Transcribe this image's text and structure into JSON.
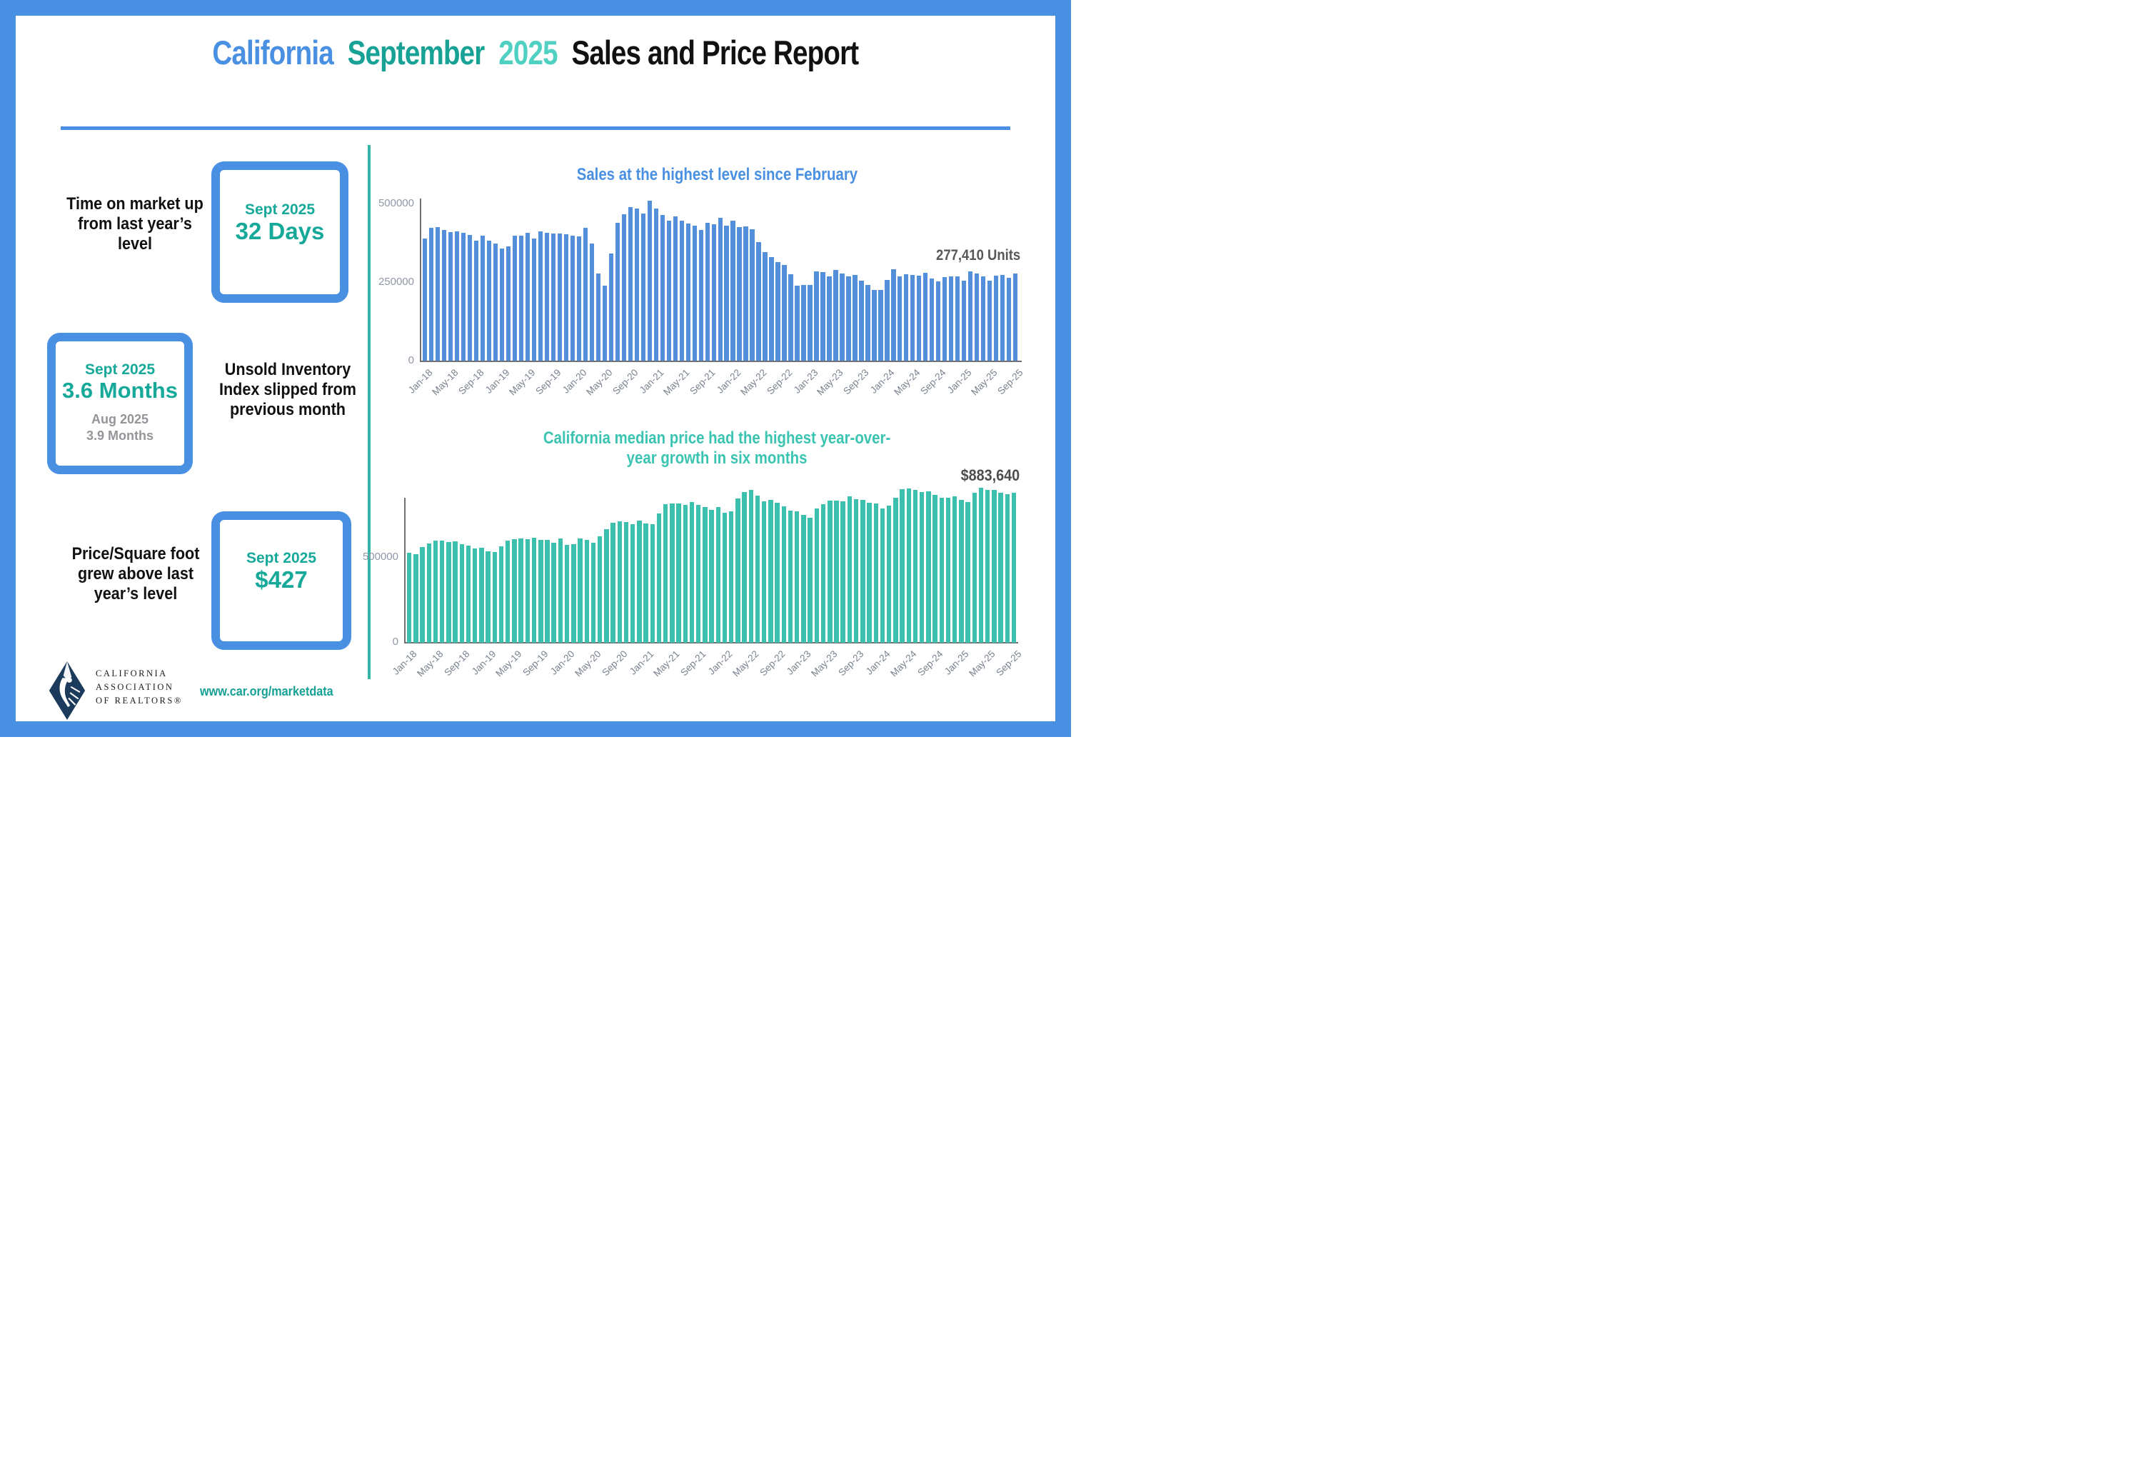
{
  "title": {
    "part1": "California",
    "part2": "September",
    "part3": "2025",
    "part4": "Sales and Price Report"
  },
  "stats": [
    {
      "label": "Time on market up from last year’s level",
      "period": "Sept 2025",
      "value": "32 Days"
    },
    {
      "period": "Sept 2025",
      "value": "3.6 Months",
      "prev_period": "Aug 2025",
      "prev_value": "3.9 Months",
      "label": "Unsold Inventory Index slipped from previous month"
    },
    {
      "label": "Price/Square foot grew above last year’s level",
      "period": "Sept 2025",
      "value": "$427"
    }
  ],
  "footer": {
    "org_line1": "CALIFORNIA",
    "org_line2": "ASSOCIATION",
    "org_line3": "OF REALTORS®",
    "url": "www.car.org/marketdata"
  },
  "colors": {
    "frame_blue": "#4a90e2",
    "sales_bar": "#548fdc",
    "price_bar": "#3bc0ae",
    "divider_teal": "#36b5a6",
    "annotation_gray": "#57585a",
    "axis_gray": "#6f7073",
    "tick_gray": "#78828f"
  },
  "chart_data": [
    {
      "type": "bar",
      "title": "Sales at the highest level since February",
      "annotation": "277,410 Units",
      "ylabel": "",
      "xlabel": "",
      "ylim": [
        0,
        550000
      ],
      "ytick_labels": [
        "500000",
        "250000",
        "0"
      ],
      "yticks": [
        500000,
        250000,
        0
      ],
      "bar_color": "#548fdc",
      "tick_every": 4,
      "tick_labels": [
        "Jan-18",
        "May-18",
        "Sep-18",
        "Jan-19",
        "May-19",
        "Sep-19",
        "Jan-20",
        "May-20",
        "Sep-20",
        "Jan-21",
        "May-21",
        "Sep-21",
        "Jan-22",
        "May-22",
        "Sep-22",
        "Jan-23",
        "May-23",
        "Sep-23",
        "Jan-24",
        "May-24",
        "Sep-24",
        "Jan-25",
        "May-25",
        "Sep-25"
      ],
      "values": [
        388800,
        422910,
        423990,
        416790,
        409270,
        410800,
        406920,
        399600,
        382550,
        397060,
        381400,
        372260,
        357730,
        364520,
        397210,
        396780,
        406960,
        389730,
        411630,
        406100,
        404030,
        404240,
        402880,
        398880,
        395550,
        421670,
        373070,
        277440,
        238740,
        339910,
        437890,
        465400,
        489590,
        484510,
        469330,
        509750,
        484730,
        462720,
        446410,
        458170,
        445660,
        436020,
        428980,
        414860,
        438190,
        434170,
        454450,
        429860,
        444540,
        424640,
        426970,
        419040,
        377790,
        344970,
        330120,
        313540,
        305680,
        274040,
        237740,
        240330,
        241520,
        284010,
        281050,
        267880,
        289460,
        277490,
        269180,
        272410,
        254740,
        241770,
        223940,
        224000,
        256160,
        290240,
        267470,
        275540,
        272410,
        270200,
        279810,
        262050,
        253010,
        264870,
        267800,
        268180,
        254110,
        283540,
        277030,
        267710,
        254190,
        270370,
        271850,
        262980,
        277410
      ]
    },
    {
      "type": "bar",
      "title_line1": "California median price had the highest year-over-",
      "title_line2": "year growth in six months",
      "annotation": "$883,640",
      "ylabel": "",
      "xlabel": "",
      "ylim": [
        0,
        950000
      ],
      "ytick_labels": [
        "500000",
        "0"
      ],
      "yticks": [
        500000,
        0
      ],
      "bar_color": "#3bc0ae",
      "tick_every": 4,
      "tick_labels": [
        "Jan-18",
        "May-18",
        "Sep-18",
        "Jan-19",
        "May-19",
        "Sep-19",
        "Jan-20",
        "May-20",
        "Sep-20",
        "Jan-21",
        "May-21",
        "Sep-21",
        "Jan-22",
        "May-22",
        "Sep-22",
        "Jan-23",
        "May-23",
        "Sep-23",
        "Jan-24",
        "May-24",
        "Sep-24",
        "Jan-25",
        "May-25",
        "Sep-25"
      ],
      "values": [
        527780,
        522440,
        564830,
        584460,
        600860,
        602760,
        591460,
        596410,
        578850,
        572000,
        554760,
        557600,
        538690,
        534140,
        565880,
        602920,
        611190,
        611420,
        607990,
        617410,
        605680,
        605280,
        589770,
        615090,
        575160,
        579770,
        612440,
        606410,
        588070,
        626170,
        666320,
        706900,
        712430,
        711300,
        699000,
        717930,
        699890,
        699000,
        758990,
        813980,
        818260,
        819630,
        811170,
        827940,
        808890,
        798440,
        782480,
        796570,
        765580,
        771270,
        849080,
        884890,
        898980,
        863790,
        833910,
        839460,
        821680,
        801190,
        777500,
        774580,
        751330,
        735480,
        791490,
        815340,
        836110,
        838260,
        832340,
        859800,
        843340,
        840360,
        822200,
        819740,
        788940,
        806490,
        854490,
        904210,
        908040,
        900720,
        886560,
        888740,
        868150,
        854530,
        852880,
        861020,
        838850,
        829060,
        884350,
        910160,
        900170,
        899560,
        884050,
        873120,
        883640
      ]
    }
  ]
}
